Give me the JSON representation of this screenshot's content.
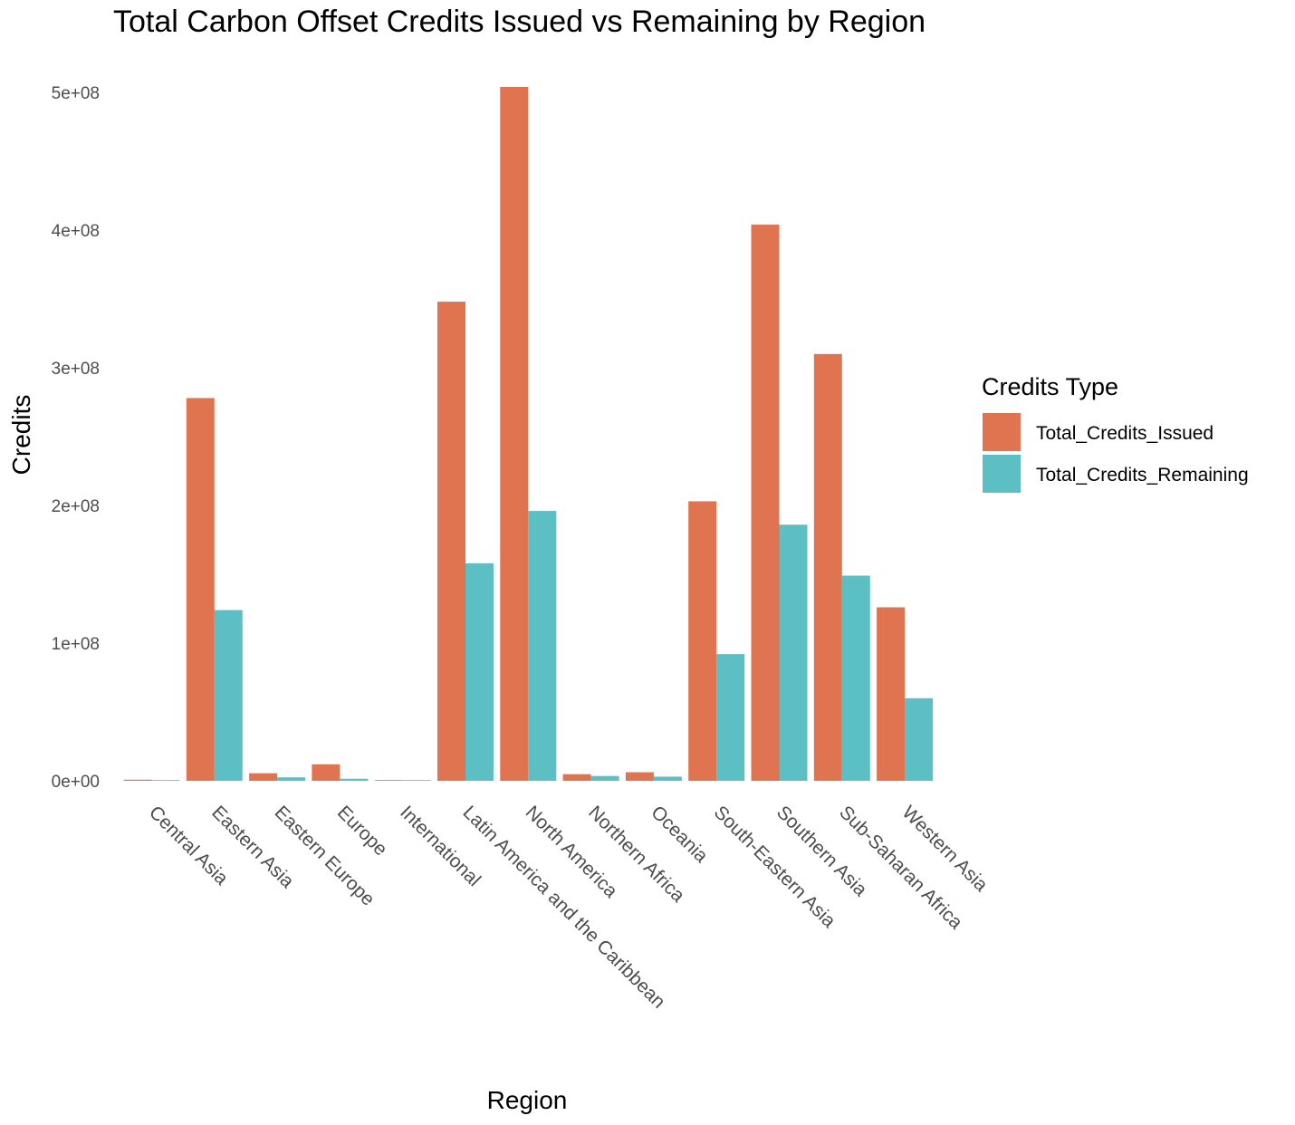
{
  "chart_data": {
    "type": "bar",
    "title": "Total Carbon Offset Credits Issued vs Remaining by Region",
    "xlabel": "Region",
    "ylabel": "Credits",
    "categories": [
      "Central Asia",
      "Eastern Asia",
      "Eastern Europe",
      "Europe",
      "International",
      "Latin America and the Caribbean",
      "North America",
      "Northern Africa",
      "Oceania",
      "South-Eastern Asia",
      "Southern Asia",
      "Sub-Saharan Africa",
      "Western Asia"
    ],
    "series": [
      {
        "name": "Total_Credits_Issued",
        "color": "#E07350",
        "values": [
          800000,
          278000000,
          5500000,
          12000000,
          300000,
          348000000,
          504000000,
          4800000,
          6200000,
          203000000,
          404000000,
          310000000,
          126000000
        ]
      },
      {
        "name": "Total_Credits_Remaining",
        "color": "#5BBFC4",
        "values": [
          500000,
          124000000,
          2500000,
          1500000,
          150000,
          158000000,
          196000000,
          3500000,
          3000000,
          92000000,
          186000000,
          149000000,
          60000000
        ]
      }
    ],
    "ylim": [
      0,
      500000000
    ],
    "yticks": [
      0,
      100000000,
      200000000,
      300000000,
      400000000,
      500000000
    ],
    "ytick_labels": [
      "0e+00",
      "1e+08",
      "2e+08",
      "3e+08",
      "4e+08",
      "5e+08"
    ],
    "grid": false,
    "legend": {
      "title": "Credits Type",
      "position": "right"
    }
  }
}
